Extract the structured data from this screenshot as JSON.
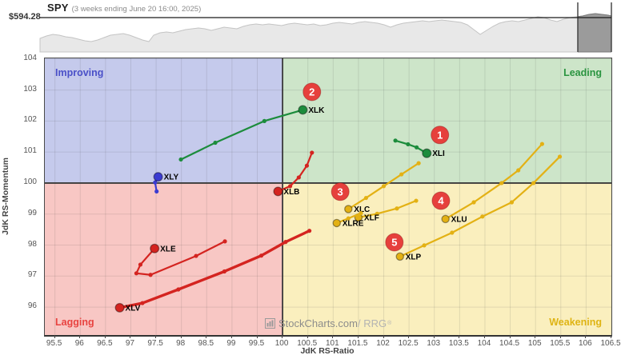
{
  "header": {
    "symbol": "SPY",
    "subtitle": "(3 weeks ending June 20 16:00, 2025)",
    "price_label": "$594.28"
  },
  "quadrants": {
    "improving": "Improving",
    "leading": "Leading",
    "lagging": "Lagging",
    "weakening": "Weakening"
  },
  "axes": {
    "x_label": "JdK RS-Ratio",
    "y_label": "JdK RS-Momentum",
    "x_ticks": [
      95.5,
      96,
      96.5,
      97,
      97.5,
      98,
      98.5,
      99,
      99.5,
      100,
      100.5,
      101,
      101.5,
      102,
      102.5,
      103,
      103.5,
      104,
      104.5,
      105,
      105.5,
      106,
      106.5
    ],
    "y_ticks": [
      96,
      97,
      98,
      99,
      100,
      101,
      102,
      103,
      104
    ]
  },
  "watermark": {
    "main": "StockCharts.com",
    "suffix": "/ RRG",
    "reg": "®",
    "icon": "stockcharts-logo-icon"
  },
  "colors": {
    "improving_bg": "#c5caec",
    "leading_bg": "#cde5c9",
    "lagging_bg": "#f8c7c4",
    "weakening_bg": "#faefbe",
    "improving_text": "#4a50c8",
    "leading_text": "#2a9440",
    "lagging_text": "#e84340",
    "weakening_text": "#dfb414",
    "grid": "rgba(60,60,60,0.13)",
    "center_line": "#3a3a3a",
    "badge": "#e6403c",
    "green": "#1c8c3c",
    "red": "#d42420",
    "blue": "#3b3bd1",
    "yellow": "#e3b114",
    "spark_fill": "#e8e8e8",
    "spark_stroke": "#c4c4c4",
    "spark_sel_fill": "#9b9b9b",
    "spark_sel_stroke": "#787878",
    "price_line": "#1a1a1a"
  },
  "chart_data": [
    {
      "type": "area",
      "name": "SPY price overview",
      "last_price": 594.28,
      "price_line_y": 22,
      "baseline_y": 65,
      "selection_x": [
        722,
        764
      ],
      "points": [
        [
          50,
          48
        ],
        [
          58,
          45
        ],
        [
          66,
          43
        ],
        [
          74,
          44
        ],
        [
          82,
          46
        ],
        [
          90,
          47
        ],
        [
          98,
          49
        ],
        [
          106,
          51
        ],
        [
          114,
          52
        ],
        [
          122,
          50
        ],
        [
          130,
          47
        ],
        [
          138,
          44
        ],
        [
          146,
          43
        ],
        [
          154,
          42
        ],
        [
          162,
          44
        ],
        [
          170,
          47
        ],
        [
          178,
          50
        ],
        [
          186,
          52
        ],
        [
          192,
          44
        ],
        [
          200,
          41
        ],
        [
          208,
          40
        ],
        [
          216,
          41
        ],
        [
          224,
          39
        ],
        [
          232,
          37
        ],
        [
          240,
          36
        ],
        [
          248,
          35
        ],
        [
          256,
          36
        ],
        [
          264,
          38
        ],
        [
          272,
          36
        ],
        [
          280,
          34
        ],
        [
          288,
          35
        ],
        [
          296,
          36
        ],
        [
          304,
          33
        ],
        [
          312,
          31
        ],
        [
          320,
          30
        ],
        [
          328,
          31
        ],
        [
          336,
          30
        ],
        [
          344,
          31
        ],
        [
          352,
          32
        ],
        [
          360,
          30
        ],
        [
          368,
          29
        ],
        [
          376,
          30
        ],
        [
          384,
          31
        ],
        [
          392,
          30
        ],
        [
          400,
          32
        ],
        [
          408,
          31
        ],
        [
          416,
          29
        ],
        [
          424,
          28
        ],
        [
          432,
          29
        ],
        [
          440,
          30
        ],
        [
          448,
          28
        ],
        [
          456,
          27
        ],
        [
          464,
          28
        ],
        [
          472,
          29
        ],
        [
          480,
          31
        ],
        [
          488,
          34
        ],
        [
          496,
          31
        ],
        [
          504,
          29
        ],
        [
          512,
          28
        ],
        [
          520,
          27
        ],
        [
          528,
          26
        ],
        [
          536,
          27
        ],
        [
          544,
          26
        ],
        [
          552,
          25
        ],
        [
          560,
          26
        ],
        [
          568,
          27
        ],
        [
          576,
          28
        ],
        [
          584,
          31
        ],
        [
          592,
          37
        ],
        [
          600,
          43
        ],
        [
          608,
          38
        ],
        [
          616,
          33
        ],
        [
          624,
          29
        ],
        [
          632,
          27
        ],
        [
          640,
          26
        ],
        [
          648,
          27
        ],
        [
          656,
          25
        ],
        [
          664,
          23
        ],
        [
          672,
          21
        ],
        [
          680,
          22
        ],
        [
          688,
          25
        ],
        [
          696,
          27
        ],
        [
          704,
          24
        ],
        [
          712,
          22
        ],
        [
          720,
          21
        ],
        [
          728,
          20
        ],
        [
          736,
          18
        ],
        [
          744,
          17
        ],
        [
          752,
          18
        ],
        [
          760,
          19
        ],
        [
          764,
          20
        ]
      ]
    },
    {
      "type": "scatter",
      "name": "Relative Rotation Graph",
      "xlabel": "JdK RS-Ratio",
      "ylabel": "JdK RS-Momentum",
      "xlim": [
        95.3,
        106.5
      ],
      "ylim": [
        95.1,
        104.02
      ],
      "center": [
        100,
        100
      ],
      "x_grid_step": 0.5,
      "y_grid_step": 1,
      "series": [
        {
          "symbol": "XLK",
          "color_key": "green",
          "tail": [
            [
              97.99,
              100.76
            ],
            [
              98.67,
              101.3
            ],
            [
              99.64,
              102.0
            ],
            [
              100.4,
              102.36
            ]
          ]
        },
        {
          "symbol": "XLI",
          "color_key": "green",
          "tail": [
            [
              102.23,
              101.37
            ],
            [
              102.48,
              101.25
            ],
            [
              102.65,
              101.15
            ],
            [
              102.85,
              100.96
            ]
          ]
        },
        {
          "symbol": "XLY",
          "color_key": "blue",
          "tail": [
            [
              97.51,
              99.73
            ],
            [
              97.48,
              100.02
            ],
            [
              97.54,
              100.2
            ]
          ]
        },
        {
          "symbol": "XLB",
          "color_key": "red",
          "tail": [
            [
              100.58,
              100.98
            ],
            [
              100.48,
              100.56
            ],
            [
              100.32,
              100.18
            ],
            [
              100.15,
              99.9
            ],
            [
              99.91,
              99.73
            ]
          ]
        },
        {
          "symbol": "XLE",
          "color_key": "red",
          "tail": [
            [
              98.86,
              98.12
            ],
            [
              98.29,
              97.65
            ],
            [
              97.39,
              97.04
            ],
            [
              97.11,
              97.09
            ],
            [
              97.19,
              97.37
            ],
            [
              97.47,
              97.89
            ]
          ]
        },
        {
          "symbol": "XLV",
          "color_key": "red",
          "stroke_width": 3.4,
          "tail": [
            [
              100.53,
              98.46
            ],
            [
              100.06,
              98.1
            ],
            [
              99.58,
              97.66
            ],
            [
              98.85,
              97.15
            ],
            [
              97.94,
              96.57
            ],
            [
              97.23,
              96.13
            ],
            [
              96.78,
              95.98
            ]
          ]
        },
        {
          "symbol": "XLC",
          "color_key": "yellow",
          "tail": [
            [
              102.69,
              100.64
            ],
            [
              102.35,
              100.28
            ],
            [
              102.0,
              99.9
            ],
            [
              101.65,
              99.52
            ],
            [
              101.3,
              99.16
            ]
          ]
        },
        {
          "symbol": "XLF",
          "color_key": "yellow",
          "tail": [
            [
              102.64,
              99.43
            ],
            [
              102.26,
              99.18
            ],
            [
              101.87,
              99.01
            ],
            [
              101.5,
              98.89
            ]
          ]
        },
        {
          "symbol": "XLRE",
          "color_key": "yellow",
          "tail": [
            [
              101.55,
              99.03
            ],
            [
              101.3,
              98.86
            ],
            [
              101.07,
              98.71
            ]
          ]
        },
        {
          "symbol": "XLU",
          "color_key": "yellow",
          "tail": [
            [
              105.13,
              101.26
            ],
            [
              104.66,
              100.41
            ],
            [
              104.33,
              100.0
            ],
            [
              103.78,
              99.38
            ],
            [
              103.22,
              98.84
            ]
          ]
        },
        {
          "symbol": "XLP",
          "color_key": "yellow",
          "tail": [
            [
              105.48,
              100.85
            ],
            [
              104.96,
              100.0
            ],
            [
              104.53,
              99.38
            ],
            [
              103.95,
              98.92
            ],
            [
              103.35,
              98.4
            ],
            [
              102.8,
              97.99
            ],
            [
              102.32,
              97.63
            ]
          ]
        }
      ],
      "badges": [
        {
          "label": "1",
          "x": 103.11,
          "y": 101.55
        },
        {
          "label": "2",
          "x": 100.58,
          "y": 102.94
        },
        {
          "label": "3",
          "x": 101.14,
          "y": 99.72
        },
        {
          "label": "4",
          "x": 103.13,
          "y": 99.43
        },
        {
          "label": "5",
          "x": 102.21,
          "y": 98.09
        }
      ]
    }
  ]
}
